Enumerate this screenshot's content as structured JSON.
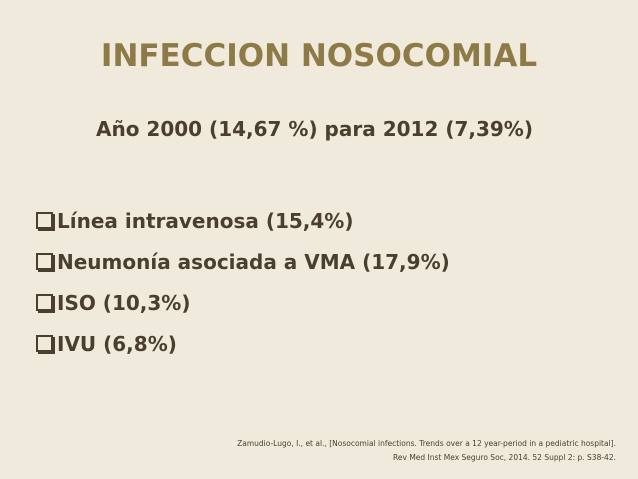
{
  "title": "INFECCION NOSOCOMIAL",
  "subtitle": "Año 2000 (14,67 %) para 2012 (7,39%)",
  "bullets": [
    "Línea intravenosa (15,4%)",
    "Neumonía asociada a VMA (17,9%)",
    "ISO (10,3%)",
    "IVU (6,8%)"
  ],
  "citation": [
    "Zamudio-Lugo, I., et al., [Nosocomial infections. Trends over a 12 year-period in a pediatric hospital].",
    "Rev Med Inst Mex Seguro Soc, 2014. 52 Suppl 2: p. S38-42."
  ]
}
